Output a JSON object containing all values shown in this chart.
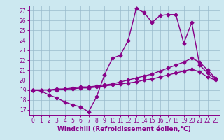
{
  "title": "",
  "xlabel": "Windchill (Refroidissement éolien,°C)",
  "ylabel": "",
  "bg_color": "#cce8f0",
  "line_color": "#880088",
  "grid_color": "#99bbcc",
  "xlim": [
    -0.5,
    23.5
  ],
  "ylim": [
    16.5,
    27.5
  ],
  "xticks": [
    0,
    1,
    2,
    3,
    4,
    5,
    6,
    7,
    8,
    9,
    10,
    11,
    12,
    13,
    14,
    15,
    16,
    17,
    18,
    19,
    20,
    21,
    22,
    23
  ],
  "yticks": [
    17,
    18,
    19,
    20,
    21,
    22,
    23,
    24,
    25,
    26,
    27
  ],
  "series1_x": [
    0,
    1,
    2,
    3,
    4,
    5,
    6,
    7,
    8,
    9,
    10,
    11,
    12,
    13,
    14,
    15,
    16,
    17,
    18,
    19,
    20,
    21,
    22,
    23
  ],
  "series1_y": [
    19.0,
    18.9,
    18.5,
    18.2,
    17.8,
    17.5,
    17.3,
    16.8,
    18.3,
    20.5,
    22.2,
    22.5,
    24.0,
    27.2,
    26.8,
    25.8,
    26.5,
    26.6,
    26.6,
    23.7,
    25.8,
    21.5,
    20.7,
    20.1
  ],
  "series2_x": [
    0,
    1,
    2,
    3,
    4,
    5,
    6,
    7,
    8,
    9,
    10,
    11,
    12,
    13,
    14,
    15,
    16,
    17,
    18,
    19,
    20,
    21,
    22,
    23
  ],
  "series2_y": [
    19.0,
    19.0,
    19.0,
    19.0,
    19.1,
    19.1,
    19.2,
    19.2,
    19.3,
    19.4,
    19.5,
    19.6,
    19.7,
    19.8,
    20.0,
    20.1,
    20.3,
    20.5,
    20.7,
    20.9,
    21.1,
    20.8,
    20.3,
    20.0
  ],
  "series3_x": [
    0,
    1,
    2,
    3,
    4,
    5,
    6,
    7,
    8,
    9,
    10,
    11,
    12,
    13,
    14,
    15,
    16,
    17,
    18,
    19,
    20,
    21,
    22,
    23
  ],
  "series3_y": [
    19.0,
    19.0,
    19.0,
    19.1,
    19.1,
    19.2,
    19.3,
    19.3,
    19.4,
    19.5,
    19.6,
    19.8,
    20.0,
    20.2,
    20.4,
    20.6,
    20.9,
    21.2,
    21.5,
    21.8,
    22.2,
    21.8,
    21.0,
    20.2
  ],
  "marker": "D",
  "markersize": 2.5,
  "linewidth": 1.0,
  "tick_fontsize": 5.5,
  "xlabel_fontsize": 6.5
}
